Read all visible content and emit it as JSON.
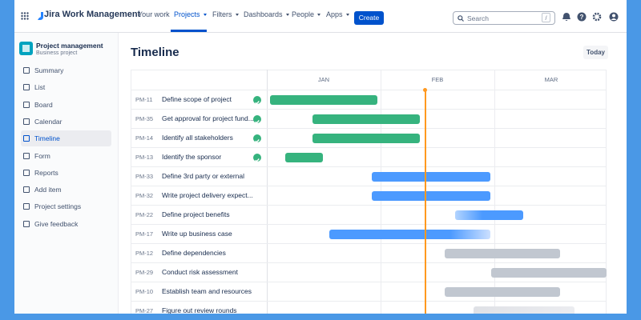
{
  "nav": {
    "brand": "Jira Work Management",
    "items": [
      "Your work",
      "Projects",
      "Filters",
      "Dashboards",
      "People",
      "Apps"
    ],
    "create": "Create",
    "search": "Search",
    "search_shortcut": "/"
  },
  "sidebar": {
    "project_name": "Project management",
    "project_type": "Business project",
    "items": [
      "Summary",
      "List",
      "Board",
      "Calendar",
      "Timeline",
      "Form",
      "Reports",
      "Add item",
      "Project settings",
      "Give feedback"
    ]
  },
  "main": {
    "title": "Timeline",
    "today_button": "Today",
    "months": [
      "JAN",
      "FEB",
      "MAR"
    ],
    "rows": [
      {
        "key": "PM-11",
        "name": "Define scope of project",
        "done": true
      },
      {
        "key": "PM-35",
        "name": "Get approval for project fund...",
        "done": true
      },
      {
        "key": "PM-14",
        "name": "Identify all stakeholders",
        "done": true
      },
      {
        "key": "PM-13",
        "name": "Identify the sponsor",
        "done": true
      },
      {
        "key": "PM-33",
        "name": "Define 3rd party or external",
        "done": false
      },
      {
        "key": "PM-32",
        "name": "Write project delivery expect...",
        "done": false
      },
      {
        "key": "PM-22",
        "name": "Define project benefits",
        "done": false
      },
      {
        "key": "PM-17",
        "name": "Write up business case",
        "done": false
      },
      {
        "key": "PM-12",
        "name": "Define dependencies",
        "done": false
      },
      {
        "key": "PM-29",
        "name": "Conduct risk assessment",
        "done": false
      },
      {
        "key": "PM-10",
        "name": "Establish team and resources",
        "done": false
      },
      {
        "key": "PM-27",
        "name": "Figure out review rounds",
        "done": false
      }
    ]
  }
}
